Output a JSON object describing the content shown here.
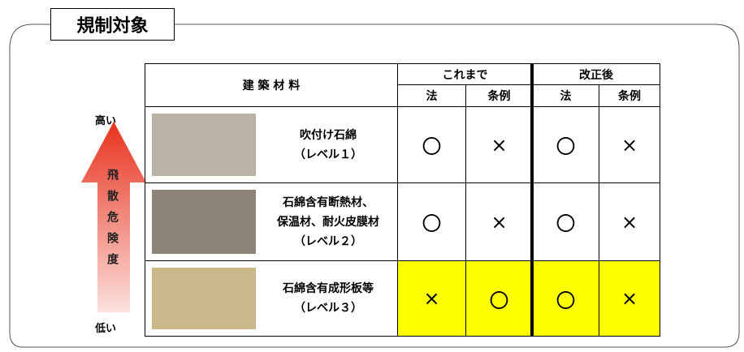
{
  "title": "規制対象",
  "risk_axis": {
    "high": "高い",
    "low": "低い",
    "label": "飛散危険度"
  },
  "table": {
    "header": {
      "material": "建 築 材 料",
      "groups": [
        "これまで",
        "改正後"
      ],
      "sub": [
        "法",
        "条例",
        "法",
        "条例"
      ]
    },
    "rows": [
      {
        "name": [
          "吹付け石綿",
          "（レベル１）"
        ],
        "cells": [
          {
            "mark": "〇",
            "highlight": false
          },
          {
            "mark": "×",
            "highlight": false
          },
          {
            "mark": "〇",
            "highlight": false
          },
          {
            "mark": "×",
            "highlight": false
          }
        ]
      },
      {
        "name": [
          "石綿含有断熱材、",
          "保温材、耐火皮膜材",
          "（レベル２）"
        ],
        "cells": [
          {
            "mark": "〇",
            "highlight": false
          },
          {
            "mark": "×",
            "highlight": false
          },
          {
            "mark": "〇",
            "highlight": false
          },
          {
            "mark": "×",
            "highlight": false
          }
        ]
      },
      {
        "name": [
          "石綿含有成形板等",
          "（レベル３）"
        ],
        "cells": [
          {
            "mark": "×",
            "highlight": true
          },
          {
            "mark": "〇",
            "highlight": true
          },
          {
            "mark": "〇",
            "highlight": true
          },
          {
            "mark": "×",
            "highlight": true
          }
        ]
      }
    ]
  }
}
